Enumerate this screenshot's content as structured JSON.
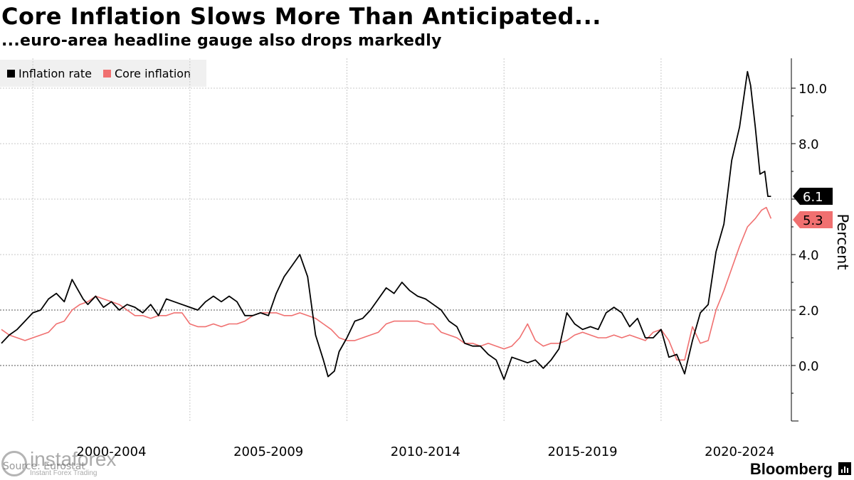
{
  "header": {
    "title": "Core Inflation Slows More Than Anticipated...",
    "subtitle": "...euro-area headline gauge also drops markedly"
  },
  "legend": {
    "items": [
      {
        "label": "Inflation rate",
        "color": "#000000"
      },
      {
        "label": "Core inflation",
        "color": "#f07070"
      }
    ]
  },
  "footer": {
    "source": "Source: Eurostat",
    "brand": "Bloomberg",
    "watermark_brand": "instaforex",
    "watermark_tagline": "Instant Forex Trading"
  },
  "colors": {
    "headline": "#000000",
    "core": "#f07070",
    "grid": "#c8c8c8",
    "zero_line": "#aaaaaa"
  },
  "chart_data": {
    "type": "line",
    "title": "Core Inflation Slows More Than Anticipated...",
    "subtitle": "...euro-area headline gauge also drops markedly",
    "xlabel": "",
    "ylabel": "Percent",
    "ylim": [
      -2.0,
      11.0
    ],
    "yticks": [
      0.0,
      2.0,
      4.0,
      6.0,
      8.0,
      10.0
    ],
    "ytick_labels": [
      "0.0",
      "2.0",
      "4.0",
      "6.0",
      "8.0",
      "10.0"
    ],
    "xlim": [
      1999.0,
      2023.65
    ],
    "period_labels": [
      {
        "label": "2000-2004",
        "center": 2002.5
      },
      {
        "label": "2005-2009",
        "center": 2007.5
      },
      {
        "label": "2010-2014",
        "center": 2012.5
      },
      {
        "label": "2015-2019",
        "center": 2017.5
      },
      {
        "label": "2020-2024",
        "center": 2022.5
      }
    ],
    "period_boundaries": [
      2000,
      2005,
      2010,
      2015,
      2020
    ],
    "grid": true,
    "legend_position": "top-left",
    "series": [
      {
        "name": "Inflation rate",
        "last_value": "6.1",
        "x": [
          1999.0,
          1999.25,
          1999.5,
          1999.75,
          2000.0,
          2000.25,
          2000.5,
          2000.75,
          2001.0,
          2001.25,
          2001.4,
          2001.6,
          2001.75,
          2002.0,
          2002.25,
          2002.5,
          2002.75,
          2003.0,
          2003.25,
          2003.5,
          2003.75,
          2004.0,
          2004.25,
          2004.5,
          2004.75,
          2005.0,
          2005.25,
          2005.5,
          2005.75,
          2006.0,
          2006.25,
          2006.5,
          2006.75,
          2007.0,
          2007.25,
          2007.5,
          2007.75,
          2008.0,
          2008.25,
          2008.5,
          2008.75,
          2009.0,
          2009.25,
          2009.4,
          2009.6,
          2009.75,
          2010.0,
          2010.25,
          2010.5,
          2010.75,
          2011.0,
          2011.25,
          2011.5,
          2011.75,
          2012.0,
          2012.25,
          2012.5,
          2012.75,
          2013.0,
          2013.25,
          2013.5,
          2013.75,
          2014.0,
          2014.25,
          2014.5,
          2014.75,
          2015.0,
          2015.25,
          2015.5,
          2015.75,
          2016.0,
          2016.25,
          2016.5,
          2016.75,
          2017.0,
          2017.25,
          2017.5,
          2017.75,
          2018.0,
          2018.25,
          2018.5,
          2018.75,
          2019.0,
          2019.25,
          2019.5,
          2019.75,
          2020.0,
          2020.25,
          2020.5,
          2020.75,
          2021.0,
          2021.25,
          2021.5,
          2021.75,
          2022.0,
          2022.25,
          2022.5,
          2022.75,
          2022.85,
          2023.0,
          2023.15,
          2023.3,
          2023.4,
          2023.5
        ],
        "values": [
          0.8,
          1.1,
          1.3,
          1.6,
          1.9,
          2.0,
          2.4,
          2.6,
          2.3,
          3.1,
          2.8,
          2.4,
          2.2,
          2.5,
          2.1,
          2.3,
          2.0,
          2.2,
          2.1,
          1.9,
          2.2,
          1.8,
          2.4,
          2.3,
          2.2,
          2.1,
          2.0,
          2.3,
          2.5,
          2.3,
          2.5,
          2.3,
          1.8,
          1.8,
          1.9,
          1.8,
          2.6,
          3.2,
          3.6,
          4.0,
          3.2,
          1.1,
          0.2,
          -0.4,
          -0.2,
          0.5,
          1.0,
          1.6,
          1.7,
          2.0,
          2.4,
          2.8,
          2.6,
          3.0,
          2.7,
          2.5,
          2.4,
          2.2,
          2.0,
          1.6,
          1.4,
          0.8,
          0.7,
          0.7,
          0.4,
          0.2,
          -0.5,
          0.3,
          0.2,
          0.1,
          0.2,
          -0.1,
          0.2,
          0.6,
          1.9,
          1.5,
          1.3,
          1.4,
          1.3,
          1.9,
          2.1,
          1.9,
          1.4,
          1.7,
          1.0,
          1.0,
          1.3,
          0.3,
          0.4,
          -0.3,
          0.9,
          1.9,
          2.2,
          4.1,
          5.1,
          7.4,
          8.6,
          10.6,
          10.1,
          8.6,
          6.9,
          7.0,
          6.1,
          6.1
        ]
      },
      {
        "name": "Core inflation",
        "last_value": "5.3",
        "x": [
          1999.0,
          1999.25,
          1999.5,
          1999.75,
          2000.0,
          2000.25,
          2000.5,
          2000.75,
          2001.0,
          2001.25,
          2001.5,
          2001.75,
          2002.0,
          2002.25,
          2002.5,
          2002.75,
          2003.0,
          2003.25,
          2003.5,
          2003.75,
          2004.0,
          2004.25,
          2004.5,
          2004.75,
          2005.0,
          2005.25,
          2005.5,
          2005.75,
          2006.0,
          2006.25,
          2006.5,
          2006.75,
          2007.0,
          2007.25,
          2007.5,
          2007.75,
          2008.0,
          2008.25,
          2008.5,
          2008.75,
          2009.0,
          2009.25,
          2009.5,
          2009.75,
          2010.0,
          2010.25,
          2010.5,
          2010.75,
          2011.0,
          2011.25,
          2011.5,
          2011.75,
          2012.0,
          2012.25,
          2012.5,
          2012.75,
          2013.0,
          2013.25,
          2013.5,
          2013.75,
          2014.0,
          2014.25,
          2014.5,
          2014.75,
          2015.0,
          2015.25,
          2015.5,
          2015.75,
          2016.0,
          2016.25,
          2016.5,
          2016.75,
          2017.0,
          2017.25,
          2017.5,
          2017.75,
          2018.0,
          2018.25,
          2018.5,
          2018.75,
          2019.0,
          2019.25,
          2019.5,
          2019.75,
          2020.0,
          2020.25,
          2020.5,
          2020.75,
          2021.0,
          2021.25,
          2021.5,
          2021.75,
          2022.0,
          2022.25,
          2022.5,
          2022.75,
          2023.0,
          2023.2,
          2023.35,
          2023.5
        ],
        "values": [
          1.3,
          1.1,
          1.0,
          0.9,
          1.0,
          1.1,
          1.2,
          1.5,
          1.6,
          2.0,
          2.2,
          2.3,
          2.5,
          2.4,
          2.3,
          2.2,
          2.0,
          1.8,
          1.8,
          1.7,
          1.8,
          1.8,
          1.9,
          1.9,
          1.5,
          1.4,
          1.4,
          1.5,
          1.4,
          1.5,
          1.5,
          1.6,
          1.8,
          1.9,
          1.9,
          1.9,
          1.8,
          1.8,
          1.9,
          1.8,
          1.7,
          1.5,
          1.3,
          1.0,
          0.9,
          0.9,
          1.0,
          1.1,
          1.2,
          1.5,
          1.6,
          1.6,
          1.6,
          1.6,
          1.5,
          1.5,
          1.2,
          1.1,
          1.0,
          0.8,
          0.8,
          0.7,
          0.8,
          0.7,
          0.6,
          0.7,
          1.0,
          1.5,
          0.9,
          0.7,
          0.8,
          0.8,
          0.9,
          1.1,
          1.2,
          1.1,
          1.0,
          1.0,
          1.1,
          1.0,
          1.1,
          1.0,
          0.9,
          1.2,
          1.3,
          0.9,
          0.2,
          0.2,
          1.4,
          0.8,
          0.9,
          2.0,
          2.7,
          3.5,
          4.3,
          5.0,
          5.3,
          5.6,
          5.7,
          5.3
        ]
      }
    ]
  }
}
